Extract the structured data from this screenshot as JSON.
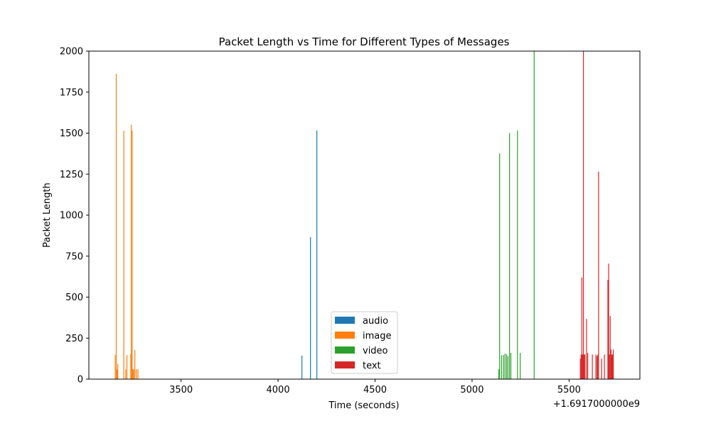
{
  "chart_data": {
    "type": "bar",
    "title": "Packet Length vs Time for Different Types of Messages",
    "xlabel": "Time (seconds)",
    "ylabel": "Packet Length",
    "x_offset_label": "+1.6917000000e9",
    "xlim": [
      3025,
      5865
    ],
    "ylim": [
      0,
      2000
    ],
    "xticks": [
      3500,
      4000,
      4500,
      5000,
      5500
    ],
    "yticks": [
      0,
      250,
      500,
      750,
      1000,
      1250,
      1500,
      1750,
      2000
    ],
    "grid": false,
    "legend_position": "lower-center",
    "series": [
      {
        "name": "audio",
        "color": "#1f77b4",
        "x": [
          4123,
          4167,
          4200
        ],
        "values": [
          143,
          866,
          1516
        ]
      },
      {
        "name": "image",
        "color": "#ff7f0e",
        "x": [
          3161,
          3166,
          3170,
          3174,
          3205,
          3215,
          3221,
          3241,
          3244,
          3248,
          3252,
          3256,
          3262,
          3270,
          3278
        ],
        "values": [
          147,
          1861,
          60,
          94,
          1516,
          60,
          147,
          152,
          1551,
          1516,
          60,
          60,
          177,
          60,
          60
        ]
      },
      {
        "name": "video",
        "color": "#2ca02c",
        "x": [
          5138,
          5142,
          5152,
          5162,
          5170,
          5178,
          5185,
          5193,
          5200,
          5234,
          5248,
          5320
        ],
        "values": [
          60,
          1376,
          145,
          147,
          156,
          152,
          140,
          1501,
          160,
          1516,
          160,
          2000
        ]
      },
      {
        "name": "text",
        "color": "#d62728",
        "x": [
          5558,
          5562,
          5566,
          5570,
          5574,
          5578,
          5582,
          5590,
          5596,
          5620,
          5638,
          5644,
          5648,
          5652,
          5668,
          5682,
          5700,
          5704,
          5708,
          5712,
          5716,
          5720,
          5724,
          5728
        ],
        "values": [
          125,
          150,
          620,
          150,
          2000,
          150,
          150,
          367,
          160,
          150,
          150,
          140,
          150,
          1265,
          125,
          150,
          605,
          705,
          150,
          385,
          180,
          150,
          150,
          180
        ]
      }
    ]
  }
}
